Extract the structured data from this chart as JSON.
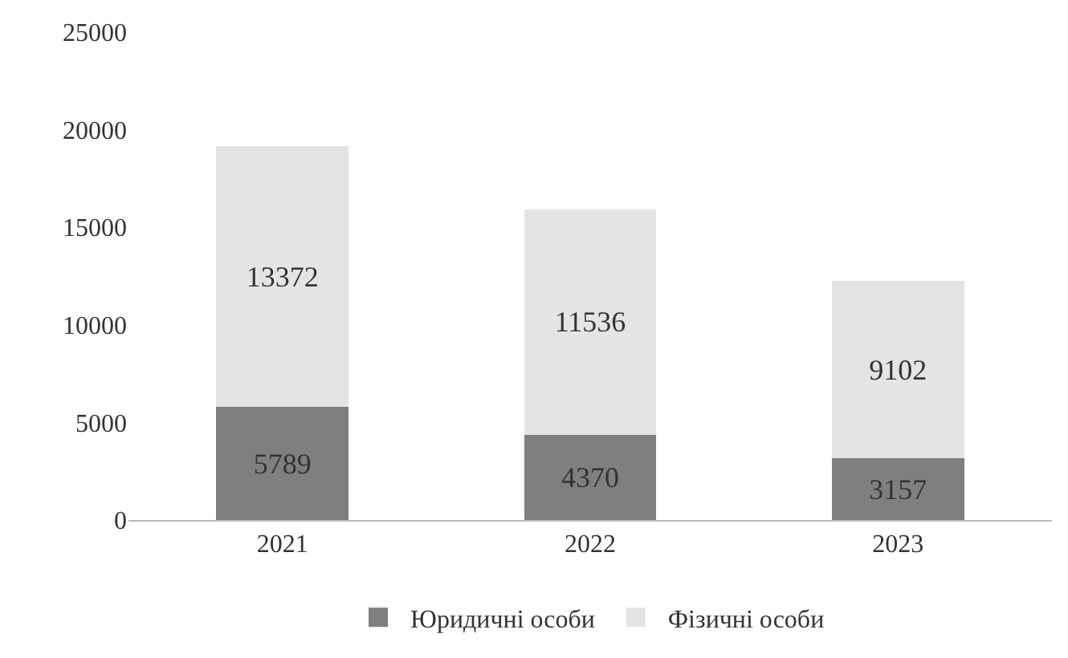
{
  "chart_data": {
    "type": "bar",
    "stacked": true,
    "categories": [
      "2021",
      "2022",
      "2023"
    ],
    "series": [
      {
        "name": "Юридичні особи",
        "color": "#7f7f7f",
        "values": [
          5789,
          4370,
          3157
        ]
      },
      {
        "name": "Фізичні особи",
        "color": "#e4e4e4",
        "values": [
          13372,
          11536,
          9102
        ]
      }
    ],
    "ylim": [
      0,
      25000
    ],
    "yticks": [
      0,
      5000,
      10000,
      15000,
      20000,
      25000
    ],
    "grid": false,
    "legend": "bottom",
    "data_labels": true
  }
}
